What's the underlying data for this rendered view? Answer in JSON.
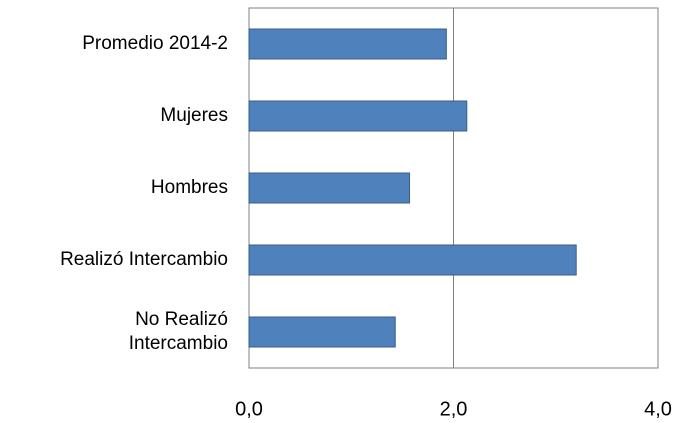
{
  "chart_data": {
    "type": "barh",
    "categories": [
      "Promedio 2014-2",
      "Mujeres",
      "Hombres",
      "Realizó Intercambio",
      "No Realizó \nIntercambio"
    ],
    "values": [
      1.93,
      2.13,
      1.57,
      3.2,
      1.43
    ],
    "color": "#4f81bd",
    "xlim": [
      0,
      4
    ],
    "xticks": [
      {
        "value": 0,
        "label": "0,0"
      },
      {
        "value": 2,
        "label": "2,0"
      },
      {
        "value": 4,
        "label": "4,0"
      }
    ],
    "grid": true
  }
}
